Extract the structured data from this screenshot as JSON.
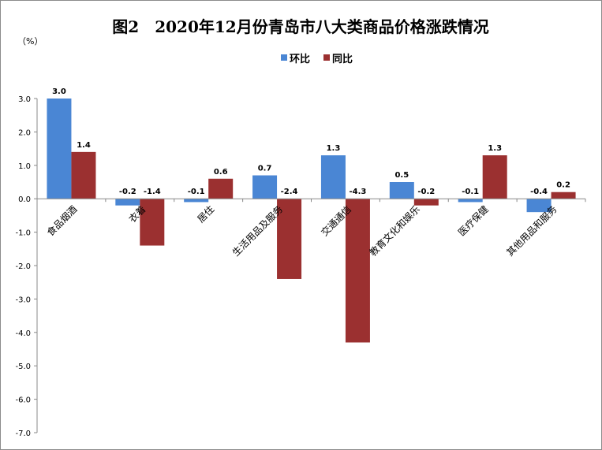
{
  "chart_data": {
    "type": "bar",
    "title": "图2　2020年12月份青岛市八大类商品价格涨跌情况",
    "ylabel": "（%）",
    "xlabel": "",
    "ylim": [
      -7.0,
      3.0
    ],
    "yticks": [
      3.0,
      2.0,
      1.0,
      0.0,
      -1.0,
      -2.0,
      -3.0,
      -4.0,
      -5.0,
      -6.0,
      -7.0
    ],
    "ytick_labels": [
      "3.0",
      "2.0",
      "1.0",
      "0.0",
      "-1.0",
      "-2.0",
      "-3.0",
      "-4.0",
      "-5.0",
      "-6.0",
      "-7.0"
    ],
    "categories": [
      "食品烟酒",
      "衣着",
      "居住",
      "生活用品及服务",
      "交通通信",
      "教育文化和娱乐",
      "医疗保健",
      "其他用品和服务"
    ],
    "series": [
      {
        "name": "环比",
        "color": "#4a86d4",
        "values": [
          3.0,
          -0.2,
          -0.1,
          0.7,
          1.3,
          0.5,
          -0.1,
          -0.4
        ],
        "labels": [
          "3.0",
          "-0.2",
          "-0.1",
          "0.7",
          "1.3",
          "0.5",
          "-0.1",
          "-0.4"
        ]
      },
      {
        "name": "同比",
        "color": "#9b3030",
        "values": [
          1.4,
          -1.4,
          0.6,
          -2.4,
          -4.3,
          -0.2,
          1.3,
          0.2
        ],
        "labels": [
          "1.4",
          "-1.4",
          "0.6",
          "-2.4",
          "-4.3",
          "-0.2",
          "1.3",
          "0.2"
        ]
      }
    ],
    "legend_position": "top",
    "grid": false
  }
}
